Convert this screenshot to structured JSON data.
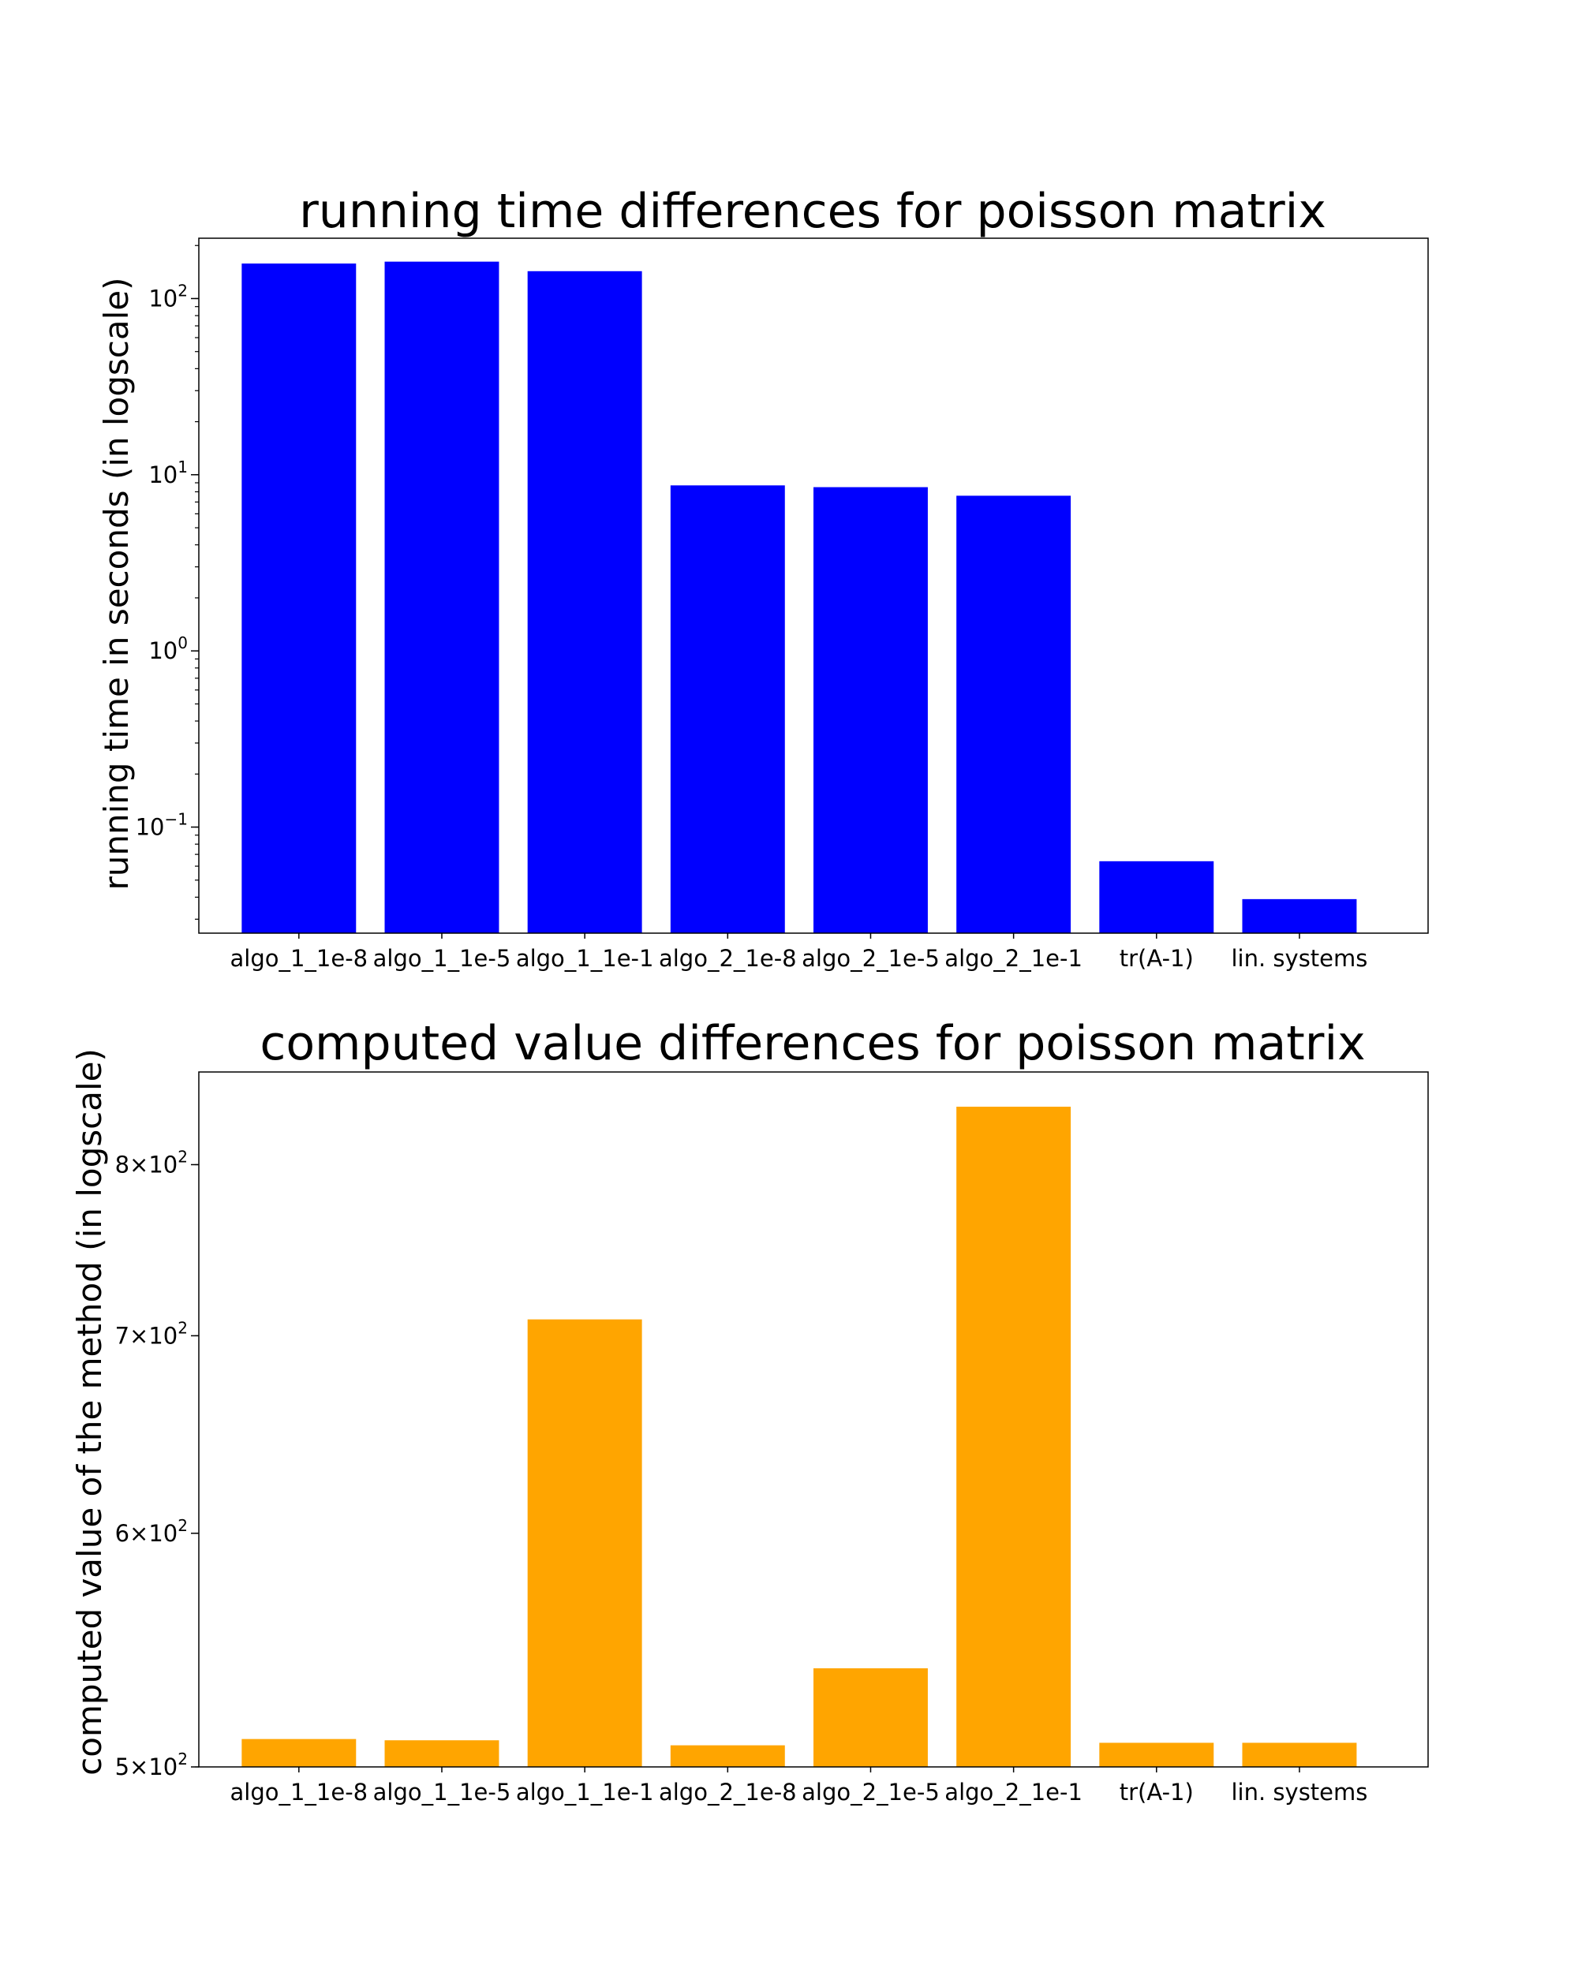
{
  "chart_data": [
    {
      "type": "bar",
      "title": "running time differences for poisson matrix",
      "xlabel": "",
      "ylabel": "running time in seconds (in logscale)",
      "yscale": "log",
      "ylim": [
        0.025,
        220
      ],
      "grid": false,
      "color": "#0000ff",
      "categories": [
        "algo_1_1e-8",
        "algo_1_1e-5",
        "algo_1_1e-1",
        "algo_2_1e-8",
        "algo_2_1e-5",
        "algo_2_1e-1",
        "tr(A-1)",
        "lin. systems"
      ],
      "values": [
        158,
        162,
        143,
        8.7,
        8.5,
        7.6,
        0.064,
        0.039
      ],
      "yticks": [
        {
          "value": 0.1,
          "base": "10",
          "exp": "−1"
        },
        {
          "value": 1,
          "base": "10",
          "exp": "0"
        },
        {
          "value": 10,
          "base": "10",
          "exp": "1"
        },
        {
          "value": 100,
          "base": "10",
          "exp": "2"
        }
      ]
    },
    {
      "type": "bar",
      "title": "computed value differences for poisson matrix",
      "xlabel": "",
      "ylabel": "computed value of the method (in logscale)",
      "yscale": "log",
      "ylim": [
        500,
        860
      ],
      "grid": false,
      "color": "#ffa500",
      "categories": [
        "algo_1_1e-8",
        "algo_1_1e-5",
        "algo_1_1e-1",
        "algo_2_1e-8",
        "algo_2_1e-5",
        "algo_2_1e-1",
        "tr(A-1)",
        "lin. systems"
      ],
      "values": [
        511,
        510.5,
        709,
        508.5,
        540,
        837,
        509.5,
        509.5
      ],
      "yticks": [
        {
          "value": 500,
          "base": "5×10",
          "exp": "2"
        },
        {
          "value": 600,
          "base": "6×10",
          "exp": "2"
        },
        {
          "value": 700,
          "base": "7×10",
          "exp": "2"
        },
        {
          "value": 800,
          "base": "8×10",
          "exp": "2"
        }
      ]
    }
  ]
}
